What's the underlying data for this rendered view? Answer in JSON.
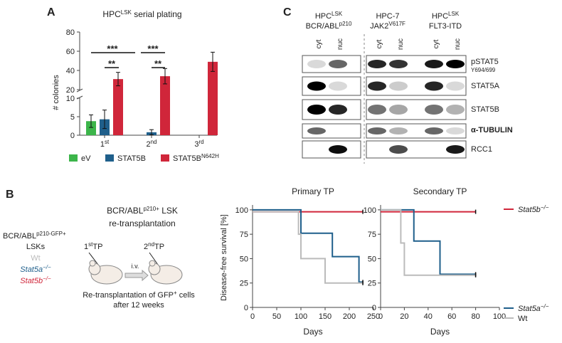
{
  "panels": {
    "a": "A",
    "b": "B",
    "c": "C"
  },
  "chart_data": [
    {
      "type": "bar",
      "title": {
        "text": "HPC",
        "sup": "LSK",
        "tail": " serial plating"
      },
      "y_label": "# colonies",
      "categories": [
        "1",
        "2",
        "3"
      ],
      "category_sups": [
        "st",
        "nd",
        "rd"
      ],
      "series": [
        {
          "name": "eV",
          "color": "#3cb54a",
          "values": [
            3.8,
            0,
            0
          ],
          "errors": [
            1.7,
            0,
            0
          ]
        },
        {
          "name": "STAT5B",
          "color": "#1f5f8b",
          "values": [
            4.3,
            0.8,
            0
          ],
          "errors": [
            2.5,
            0.7,
            0
          ]
        },
        {
          "name": "STAT5B",
          "name_sup": "N642H",
          "color": "#d0263a",
          "values": [
            31,
            34,
            49
          ],
          "errors": [
            7,
            8,
            10
          ]
        }
      ],
      "ylim": [
        0,
        80
      ],
      "y_break": [
        10,
        20
      ],
      "yticks": [
        0,
        5,
        10,
        20,
        40,
        60,
        80
      ],
      "annotations": [
        "***",
        "**",
        "***",
        "**"
      ]
    },
    {
      "type": "line",
      "title": "Primary TP",
      "x_label": "Days",
      "y_label": "Disease-free survival [%]",
      "xlim": [
        0,
        250
      ],
      "xticks": [
        0,
        50,
        100,
        150,
        200,
        250
      ],
      "ylim": [
        0,
        105
      ],
      "yticks": [
        0,
        25,
        50,
        75,
        100
      ],
      "series": [
        {
          "name": "Stat5b",
          "name_sup": "−/−",
          "color": "#d0263a",
          "x": [
            0,
            228
          ],
          "values": [
            98,
            98
          ]
        },
        {
          "name": "Stat5a",
          "name_sup": "−/−",
          "color": "#1f5f8b",
          "x": [
            0,
            100,
            100,
            165,
            165,
            220,
            220,
            228
          ],
          "values": [
            100,
            100,
            76,
            76,
            52,
            52,
            26,
            26
          ]
        },
        {
          "name": "Wt",
          "color": "#bbbbbb",
          "x": [
            0,
            95,
            95,
            100,
            100,
            150,
            150,
            228
          ],
          "values": [
            98,
            98,
            75,
            75,
            50,
            50,
            25,
            25
          ]
        }
      ]
    },
    {
      "type": "line",
      "title": "Secondary TP",
      "x_label": "Days",
      "legend": true,
      "xlim": [
        0,
        100
      ],
      "xticks": [
        0,
        20,
        40,
        60,
        80,
        100
      ],
      "ylim": [
        0,
        105
      ],
      "yticks": [
        0,
        25,
        50,
        75,
        100
      ],
      "series": [
        {
          "name": "Stat5b",
          "name_sup": "−/−",
          "color": "#d0263a",
          "x": [
            0,
            80
          ],
          "values": [
            98,
            98
          ]
        },
        {
          "name": "Stat5a",
          "name_sup": "−/−",
          "color": "#1f5f8b",
          "x": [
            0,
            28,
            28,
            50,
            50,
            80
          ],
          "values": [
            100,
            100,
            68,
            68,
            34,
            34
          ]
        },
        {
          "name": "Wt",
          "color": "#bbbbbb",
          "x": [
            0,
            17,
            17,
            20,
            20,
            80
          ],
          "values": [
            100,
            100,
            66,
            66,
            33,
            33
          ]
        }
      ]
    }
  ],
  "blot": {
    "groups": [
      {
        "l1": "HPC",
        "l1_sup": "LSK",
        "l2": "BCR/ABL",
        "l2_sup": "p210"
      },
      {
        "l1": "HPC-7",
        "l2": "JAK2",
        "l2_sup": "V617F"
      },
      {
        "l1": "HPC",
        "l1_sup": "LSK",
        "l2": "FLT3-ITD"
      }
    ],
    "lanes": [
      "cyt",
      "nuc"
    ],
    "rows": [
      "pSTAT5",
      "STAT5A",
      "STAT5B",
      "α-TUBULIN",
      "RCC1"
    ],
    "row0_sub": "Y694/699"
  },
  "schematic": {
    "title1": "BCR/ABL",
    "title1_sup": "p210+",
    "title1_tail": " LSK",
    "title2": "re-transplantation",
    "donor": "BCR/ABL",
    "donor_sup": "p210-GFP+",
    "donor2": "LSKs",
    "wt": "Wt",
    "a": "Stat5a",
    "b": "Stat5b",
    "ko_sup": "−/−",
    "tp1": "1",
    "tp1_sup": "st",
    "tp1_tail": "TP",
    "tp2": "2",
    "tp2_sup": "nd",
    "tp2_tail": "TP",
    "iv": "i.v.",
    "note1": "Re-transplantation of GFP",
    "note1_sup": "+",
    "note1_tail": " cells",
    "note2": "after 12 weeks"
  }
}
